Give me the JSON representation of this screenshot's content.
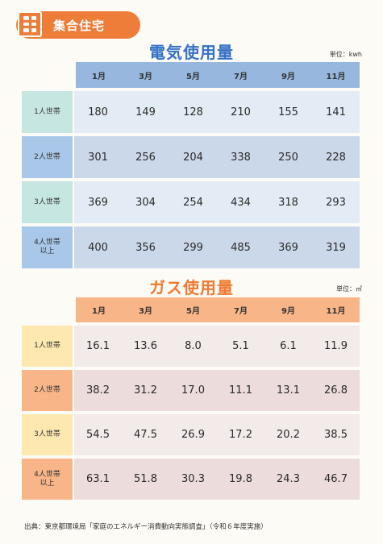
{
  "colors": {
    "accent_orange": "#ef7d3a",
    "electric_blue": "#3571c4",
    "gas_orange": "#ee7a32"
  },
  "header": {
    "icon": "building-icon",
    "badge_label": "集合住宅"
  },
  "electricity": {
    "title": "電気使用量",
    "unit": "単位：kwh",
    "months": [
      "1月",
      "3月",
      "5月",
      "7月",
      "9月",
      "11月"
    ],
    "row_header_colors": [
      "#c6e6e2",
      "#a9c7e9",
      "#c6e6e2",
      "#a9c7e9"
    ],
    "rows": [
      {
        "label": "1人世帯",
        "values": [
          "180",
          "149",
          "128",
          "210",
          "155",
          "141"
        ]
      },
      {
        "label": "2人世帯",
        "values": [
          "301",
          "256",
          "204",
          "338",
          "250",
          "228"
        ]
      },
      {
        "label": "3人世帯",
        "values": [
          "369",
          "304",
          "254",
          "434",
          "318",
          "293"
        ]
      },
      {
        "label": "4人世帯\n以上",
        "values": [
          "400",
          "356",
          "299",
          "485",
          "369",
          "319"
        ]
      }
    ]
  },
  "gas": {
    "title": "ガス使用量",
    "unit": "単位：㎥",
    "months": [
      "1月",
      "3月",
      "5月",
      "7月",
      "9月",
      "11月"
    ],
    "row_header_colors": [
      "#fde9b0",
      "#f8b587",
      "#fde9b0",
      "#f8b587"
    ],
    "rows": [
      {
        "label": "1人世帯",
        "values": [
          "16.1",
          "13.6",
          "8.0",
          "5.1",
          "6.1",
          "11.9"
        ]
      },
      {
        "label": "2人世帯",
        "values": [
          "38.2",
          "31.2",
          "17.0",
          "11.1",
          "13.1",
          "26.8"
        ]
      },
      {
        "label": "3人世帯",
        "values": [
          "54.5",
          "47.5",
          "26.9",
          "17.2",
          "20.2",
          "38.5"
        ]
      },
      {
        "label": "4人世帯\n以上",
        "values": [
          "63.1",
          "51.8",
          "30.3",
          "19.8",
          "24.3",
          "46.7"
        ]
      }
    ]
  },
  "footer": {
    "source": "出典：東京都環境局「家庭のエネルギー消費動向実態調査」（令和６年度実施）"
  }
}
